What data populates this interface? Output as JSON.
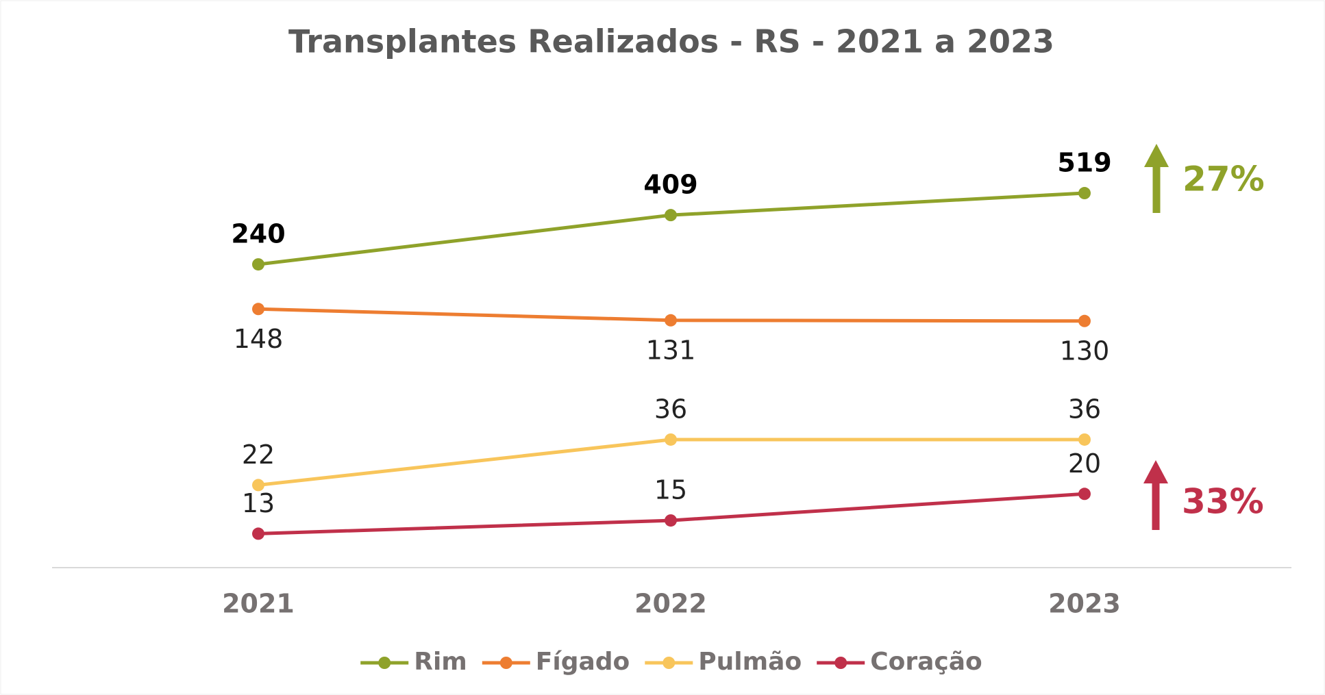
{
  "chart_data": {
    "type": "line",
    "title": "Transplantes Realizados - RS - 2021 a 2023",
    "categories": [
      "2021",
      "2022",
      "2023"
    ],
    "log_scale": true,
    "ylim": [
      9,
      1700
    ],
    "legend": "bottom",
    "series": [
      {
        "name": "Rim",
        "color": "#8fa22a",
        "values": [
          240,
          409,
          519
        ],
        "label_position": "above",
        "label_bold": true
      },
      {
        "name": "Fígado",
        "color": "#ed7d31",
        "values": [
          148,
          131,
          130
        ],
        "label_position": "below",
        "label_bold": false
      },
      {
        "name": "Pulmão",
        "color": "#f8c55b",
        "values": [
          22,
          36,
          36
        ],
        "label_position": "above",
        "label_bold": false
      },
      {
        "name": "Coração",
        "color": "#c0304a",
        "values": [
          13,
          15,
          20
        ],
        "label_position": "above",
        "label_bold": false
      }
    ],
    "annotations": [
      {
        "text": "27%",
        "color": "#8fa22a"
      },
      {
        "text": "33%",
        "color": "#c0304a"
      }
    ]
  }
}
